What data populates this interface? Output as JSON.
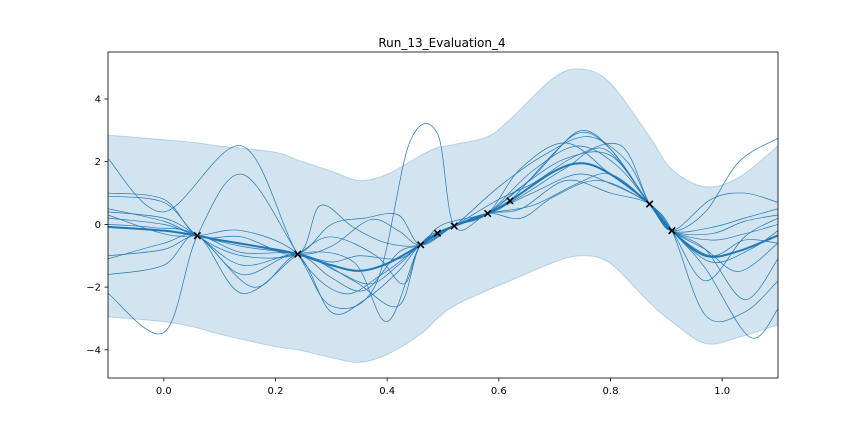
{
  "chart_data": {
    "type": "line",
    "title": "Run_13_Evaluation_4",
    "xlabel": "",
    "ylabel": "",
    "xlim": [
      -0.1,
      1.1
    ],
    "ylim": [
      -4.9,
      5.5
    ],
    "x_ticks": [
      0.0,
      0.2,
      0.4,
      0.6,
      0.8,
      1.0
    ],
    "x_tick_labels": [
      "0.0",
      "0.2",
      "0.4",
      "0.6",
      "0.8",
      "1.0"
    ],
    "y_ticks": [
      -4,
      -2,
      0,
      2,
      4
    ],
    "y_tick_labels": [
      "−4",
      "−2",
      "0",
      "2",
      "4"
    ],
    "grid": false,
    "colors": {
      "line": "#1f77b4",
      "band": "#1f77b4",
      "points": "#000000"
    },
    "mean": {
      "x": [
        -0.1,
        0.0,
        0.06,
        0.1,
        0.2,
        0.24,
        0.3,
        0.35,
        0.4,
        0.46,
        0.49,
        0.52,
        0.58,
        0.62,
        0.7,
        0.75,
        0.8,
        0.87,
        0.91,
        0.97,
        1.03,
        1.1
      ],
      "y": [
        -0.08,
        -0.2,
        -0.36,
        -0.5,
        -0.8,
        -0.95,
        -1.3,
        -1.48,
        -1.25,
        -0.65,
        -0.28,
        -0.05,
        0.35,
        0.75,
        1.7,
        1.95,
        1.6,
        0.65,
        -0.2,
        -1.0,
        -0.85,
        -0.35
      ]
    },
    "band": {
      "x": [
        -0.1,
        0.0,
        0.06,
        0.1,
        0.2,
        0.24,
        0.3,
        0.35,
        0.4,
        0.46,
        0.49,
        0.52,
        0.58,
        0.62,
        0.7,
        0.75,
        0.8,
        0.87,
        0.91,
        0.97,
        1.03,
        1.1
      ],
      "upper": [
        2.85,
        2.7,
        2.6,
        2.5,
        2.3,
        2.05,
        1.7,
        1.4,
        1.6,
        2.2,
        2.45,
        2.55,
        2.8,
        3.35,
        4.7,
        4.95,
        4.5,
        2.8,
        1.75,
        1.2,
        1.5,
        2.5
      ],
      "lower": [
        -2.95,
        -3.1,
        -3.3,
        -3.5,
        -3.9,
        -4.0,
        -4.25,
        -4.4,
        -4.15,
        -3.5,
        -3.0,
        -2.6,
        -2.1,
        -1.8,
        -1.2,
        -1.0,
        -1.25,
        -2.5,
        -3.1,
        -3.8,
        -3.6,
        -3.2
      ]
    },
    "observations": {
      "x": [
        0.06,
        0.24,
        0.46,
        0.49,
        0.52,
        0.58,
        0.62,
        0.87,
        0.91
      ],
      "y": [
        -0.36,
        -0.95,
        -0.65,
        -0.28,
        -0.05,
        0.35,
        0.75,
        0.65,
        -0.2
      ]
    },
    "samples": [
      {
        "x": [
          -0.1,
          0.0,
          0.14,
          0.24,
          0.32,
          0.39,
          0.46,
          0.5,
          0.58,
          0.62,
          0.7,
          0.75,
          0.8,
          0.87,
          0.91,
          0.97,
          1.03,
          1.1
        ],
        "y": [
          2.1,
          0.4,
          2.5,
          -0.95,
          -2.2,
          -1.6,
          -0.65,
          0.0,
          0.35,
          0.75,
          2.3,
          3.0,
          2.4,
          0.65,
          -0.2,
          0.4,
          2.0,
          2.75
        ]
      },
      {
        "x": [
          -0.1,
          0.0,
          0.06,
          0.14,
          0.24,
          0.34,
          0.42,
          0.46,
          0.52,
          0.6,
          0.68,
          0.76,
          0.83,
          0.87,
          0.91,
          0.97,
          1.04,
          1.1
        ],
        "y": [
          -1.1,
          -0.6,
          -0.36,
          -1.6,
          -0.95,
          -1.8,
          -2.6,
          -0.65,
          -0.05,
          1.2,
          2.2,
          2.8,
          2.0,
          0.65,
          -0.2,
          -0.8,
          -2.4,
          -1.1
        ]
      },
      {
        "x": [
          -0.1,
          -0.02,
          0.06,
          0.16,
          0.24,
          0.34,
          0.4,
          0.46,
          0.52,
          0.6,
          0.66,
          0.74,
          0.82,
          0.87,
          0.91,
          0.97,
          1.05,
          1.1
        ],
        "y": [
          0.0,
          -0.1,
          -0.36,
          -2.0,
          -0.95,
          -1.2,
          -3.1,
          -0.65,
          -0.05,
          0.8,
          1.3,
          2.2,
          2.5,
          0.65,
          -0.2,
          -1.4,
          -3.6,
          -2.7
        ]
      },
      {
        "x": [
          -0.1,
          0.0,
          0.06,
          0.14,
          0.24,
          0.3,
          0.38,
          0.44,
          0.49,
          0.52,
          0.58,
          0.66,
          0.74,
          0.8,
          0.87,
          0.91,
          0.98,
          1.04,
          1.1
        ],
        "y": [
          -2.2,
          -3.45,
          -0.36,
          1.6,
          -0.95,
          -2.6,
          -1.9,
          2.6,
          2.9,
          -0.05,
          0.35,
          1.0,
          1.6,
          1.3,
          0.65,
          -0.2,
          0.8,
          1.0,
          0.7
        ]
      },
      {
        "x": [
          -0.1,
          0.0,
          0.06,
          0.14,
          0.24,
          0.3,
          0.36,
          0.42,
          0.46,
          0.52,
          0.58,
          0.64,
          0.72,
          0.8,
          0.87,
          0.91,
          0.98,
          1.04,
          1.1
        ],
        "y": [
          0.9,
          0.7,
          -0.36,
          -1.0,
          -0.95,
          0.0,
          0.2,
          0.3,
          -0.65,
          -0.05,
          0.35,
          1.8,
          2.6,
          1.6,
          0.65,
          -0.2,
          -0.3,
          0.1,
          0.3
        ]
      },
      {
        "x": [
          -0.1,
          0.0,
          0.06,
          0.14,
          0.24,
          0.3,
          0.36,
          0.42,
          0.46,
          0.52,
          0.58,
          0.66,
          0.74,
          0.8,
          0.87,
          0.91,
          0.97,
          1.04,
          1.1
        ],
        "y": [
          0.3,
          -0.3,
          -0.36,
          -0.2,
          -0.95,
          -2.8,
          -2.4,
          -1.5,
          -0.65,
          -0.05,
          0.35,
          0.6,
          1.3,
          1.6,
          0.65,
          -0.2,
          -2.9,
          -2.8,
          -1.8
        ]
      },
      {
        "x": [
          -0.1,
          0.0,
          0.06,
          0.14,
          0.24,
          0.3,
          0.37,
          0.42,
          0.46,
          0.52,
          0.58,
          0.64,
          0.72,
          0.79,
          0.87,
          0.91,
          0.98,
          1.04,
          1.1
        ],
        "y": [
          0.5,
          0.1,
          -0.36,
          -0.6,
          -0.95,
          -0.7,
          0.15,
          -0.2,
          -0.65,
          -0.05,
          0.35,
          0.9,
          1.8,
          2.4,
          0.65,
          -0.2,
          -0.5,
          -0.3,
          0.0
        ]
      },
      {
        "x": [
          -0.1,
          0.0,
          0.06,
          0.14,
          0.24,
          0.3,
          0.38,
          0.43,
          0.46,
          0.52,
          0.58,
          0.64,
          0.72,
          0.8,
          0.87,
          0.91,
          0.98,
          1.04,
          1.1
        ],
        "y": [
          -1.6,
          -1.3,
          -0.36,
          -2.2,
          -0.95,
          -0.4,
          -1.0,
          -1.9,
          -0.65,
          -0.05,
          0.35,
          0.5,
          1.4,
          1.0,
          0.65,
          -0.2,
          -1.0,
          -0.5,
          -0.6
        ]
      },
      {
        "x": [
          -0.1,
          0.0,
          0.06,
          0.14,
          0.24,
          0.28,
          0.34,
          0.4,
          0.46,
          0.52,
          0.58,
          0.66,
          0.74,
          0.8,
          0.87,
          0.91,
          0.98,
          1.04,
          1.1
        ],
        "y": [
          1.0,
          0.8,
          -0.36,
          -0.4,
          -0.95,
          0.6,
          -0.1,
          -0.6,
          -0.65,
          -0.05,
          0.35,
          1.5,
          2.9,
          2.4,
          0.65,
          -0.2,
          -0.1,
          0.2,
          0.5
        ]
      },
      {
        "x": [
          -0.1,
          0.0,
          0.06,
          0.14,
          0.24,
          0.31,
          0.37,
          0.42,
          0.46,
          0.52,
          0.58,
          0.64,
          0.72,
          0.8,
          0.87,
          0.91,
          0.97,
          1.03,
          1.1
        ],
        "y": [
          0.4,
          0.2,
          -0.36,
          -1.3,
          -0.95,
          -1.5,
          -1.9,
          -1.3,
          -0.65,
          -0.05,
          0.35,
          1.2,
          2.1,
          2.2,
          0.65,
          -0.2,
          -0.8,
          -1.5,
          -0.6
        ]
      },
      {
        "x": [
          -0.1,
          0.0,
          0.06,
          0.14,
          0.24,
          0.3,
          0.36,
          0.42,
          0.46,
          0.52,
          0.58,
          0.64,
          0.7,
          0.78,
          0.87,
          0.91,
          0.97,
          1.04,
          1.1
        ],
        "y": [
          -1.0,
          -0.8,
          -0.36,
          -0.9,
          -0.95,
          -1.7,
          -2.1,
          -0.9,
          -0.65,
          -0.05,
          0.35,
          0.2,
          0.9,
          1.4,
          0.65,
          -0.2,
          -1.8,
          -0.4,
          0.2
        ]
      },
      {
        "x": [
          -0.1,
          0.0,
          0.06,
          0.14,
          0.24,
          0.3,
          0.35,
          0.42,
          0.46,
          0.52,
          0.58,
          0.66,
          0.74,
          0.81,
          0.87,
          0.91,
          0.98,
          1.05,
          1.1
        ],
        "y": [
          0.2,
          0.0,
          -0.36,
          -0.7,
          -0.95,
          -1.2,
          -1.0,
          -1.1,
          -0.65,
          -0.05,
          0.35,
          1.7,
          2.5,
          1.9,
          0.65,
          -0.2,
          -1.2,
          -0.8,
          -0.2
        ]
      }
    ]
  }
}
